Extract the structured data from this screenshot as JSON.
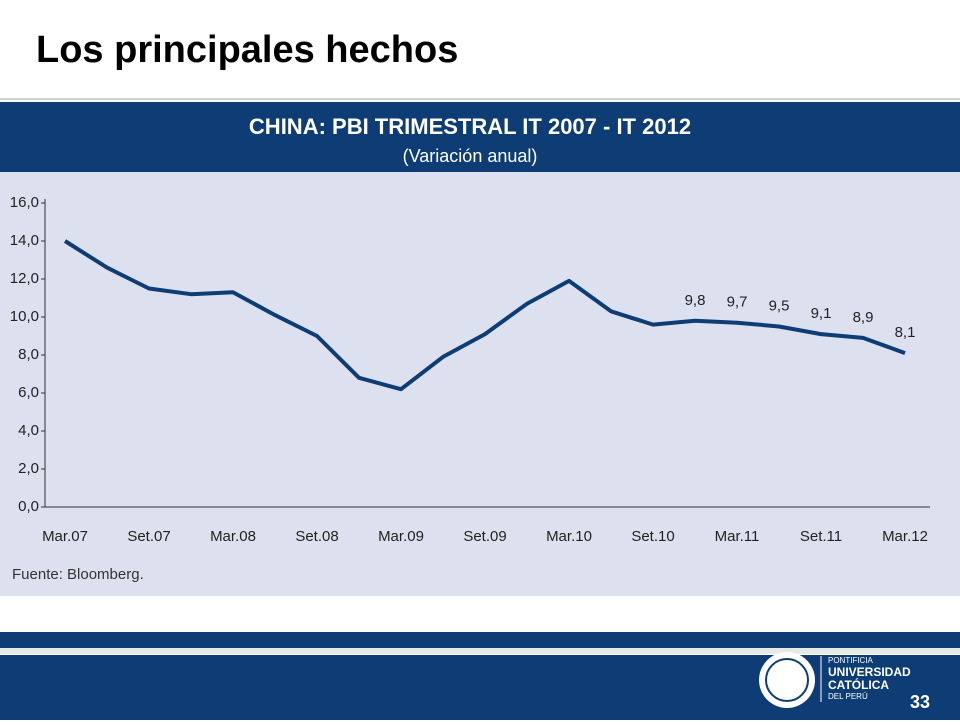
{
  "slide": {
    "title": "Los principales hechos",
    "page_number": "33",
    "logo": [
      "PONTIFICIA",
      "UNIVERSIDAD",
      "CATÓLICA",
      "DEL PERÚ"
    ]
  },
  "chart_data": {
    "type": "line",
    "title": "CHINA: PBI TRIMESTRAL IT 2007 - IT 2012",
    "subtitle": "(Variación anual)",
    "source": "Fuente: Bloomberg.",
    "categories": [
      "Mar.07",
      null,
      "Set.07",
      null,
      "Mar.08",
      null,
      "Set.08",
      null,
      "Mar.09",
      null,
      "Set.09",
      null,
      "Mar.10",
      null,
      "Set.10",
      null,
      "Mar.11",
      null,
      "Set.11",
      null,
      "Mar.12"
    ],
    "series": [
      {
        "color": "#0d3d74",
        "values": [
          14.0,
          12.6,
          11.5,
          11.2,
          11.3,
          10.1,
          9.0,
          6.8,
          6.2,
          7.9,
          9.1,
          10.7,
          11.9,
          10.3,
          9.6,
          9.8,
          9.7,
          9.5,
          9.1,
          8.9,
          8.1
        ],
        "value_labels": [
          null,
          null,
          null,
          null,
          null,
          null,
          null,
          null,
          null,
          null,
          null,
          null,
          null,
          null,
          null,
          "9,8",
          "9,7",
          "9,5",
          "9,1",
          "8,9",
          "8,1"
        ]
      }
    ],
    "ylim": [
      0,
      16
    ],
    "yticks": [
      {
        "value": 0,
        "label": "0,0"
      },
      {
        "value": 2,
        "label": "2,0"
      },
      {
        "value": 4,
        "label": "4,0"
      },
      {
        "value": 6,
        "label": "6,0"
      },
      {
        "value": 8,
        "label": "8,0"
      },
      {
        "value": 10,
        "label": "10,0"
      },
      {
        "value": 12,
        "label": "12,0"
      },
      {
        "value": 14,
        "label": "14,0"
      },
      {
        "value": 16,
        "label": "16,0"
      }
    ],
    "grid": false
  }
}
